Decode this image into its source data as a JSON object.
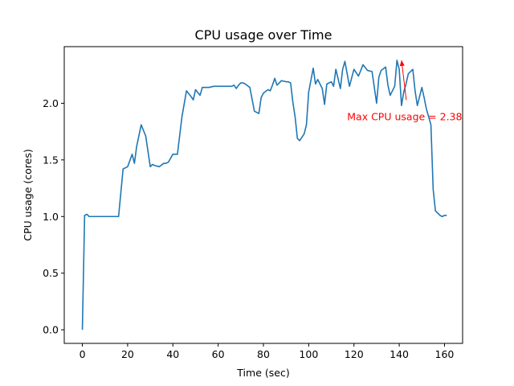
{
  "chart_data": {
    "type": "line",
    "title": "CPU usage over Time",
    "xlabel": "Time (sec)",
    "ylabel": "CPU usage (cores)",
    "xlim": [
      -8,
      168
    ],
    "ylim": [
      -0.12,
      2.5
    ],
    "xticks": [
      0,
      20,
      40,
      60,
      80,
      100,
      120,
      140,
      160
    ],
    "yticks": [
      0.0,
      0.5,
      1.0,
      1.5,
      2.0
    ],
    "ytick_labels": [
      "0.0",
      "0.5",
      "1.0",
      "1.5",
      "2.0"
    ],
    "grid": false,
    "line_color": "#1f77b4",
    "series": [
      {
        "x": [
          0,
          1,
          2,
          3,
          4,
          6,
          8,
          10,
          11,
          12,
          13,
          14,
          16,
          18,
          19,
          20,
          22,
          23,
          24,
          26,
          28,
          30,
          31,
          32,
          34,
          36,
          37,
          38,
          40,
          42,
          44,
          46,
          48,
          49,
          50,
          52,
          53,
          54,
          56,
          58,
          60,
          62,
          64,
          66,
          67,
          68,
          69,
          70,
          71,
          72,
          74,
          76,
          78,
          79,
          80,
          82,
          83,
          84,
          85,
          86,
          88,
          90,
          91,
          92,
          93,
          94,
          95,
          96,
          98,
          99,
          100,
          102,
          103,
          104,
          106,
          107,
          108,
          110,
          111,
          112,
          114,
          115,
          116,
          118,
          120,
          122,
          124,
          126,
          128,
          130,
          131,
          132,
          134,
          135,
          136,
          138,
          139,
          140,
          141,
          142,
          143,
          144,
          146,
          147,
          148,
          150,
          151,
          152,
          154,
          155,
          156,
          158,
          159,
          160,
          161
        ],
        "y": [
          0.0,
          1.01,
          1.02,
          1.0,
          1.0,
          1.0,
          1.0,
          1.0,
          1.0,
          1.0,
          1.0,
          1.0,
          1.0,
          1.42,
          1.43,
          1.44,
          1.55,
          1.47,
          1.62,
          1.81,
          1.71,
          1.44,
          1.46,
          1.45,
          1.44,
          1.47,
          1.47,
          1.48,
          1.55,
          1.55,
          1.88,
          2.11,
          2.06,
          2.03,
          2.12,
          2.07,
          2.14,
          2.14,
          2.14,
          2.15,
          2.15,
          2.15,
          2.15,
          2.15,
          2.16,
          2.13,
          2.16,
          2.18,
          2.18,
          2.17,
          2.14,
          1.93,
          1.91,
          2.05,
          2.09,
          2.12,
          2.11,
          2.16,
          2.22,
          2.16,
          2.2,
          2.19,
          2.19,
          2.18,
          2.01,
          1.88,
          1.69,
          1.67,
          1.73,
          1.81,
          2.1,
          2.31,
          2.17,
          2.21,
          2.13,
          1.99,
          2.17,
          2.19,
          2.15,
          2.3,
          2.13,
          2.3,
          2.37,
          2.15,
          2.3,
          2.24,
          2.34,
          2.29,
          2.28,
          2.0,
          2.23,
          2.29,
          2.32,
          2.16,
          2.07,
          2.15,
          2.38,
          2.3,
          1.98,
          2.1,
          2.17,
          2.26,
          2.3,
          2.11,
          1.98,
          2.14,
          2.05,
          1.95,
          1.81,
          1.24,
          1.05,
          1.01,
          1.0,
          1.01,
          1.01
        ]
      }
    ],
    "annotations": [
      {
        "text": "Max CPU usage = 2.38",
        "color": "#ff0000",
        "point": [
          141,
          2.38
        ],
        "text_at": [
          117,
          1.85
        ]
      }
    ]
  }
}
